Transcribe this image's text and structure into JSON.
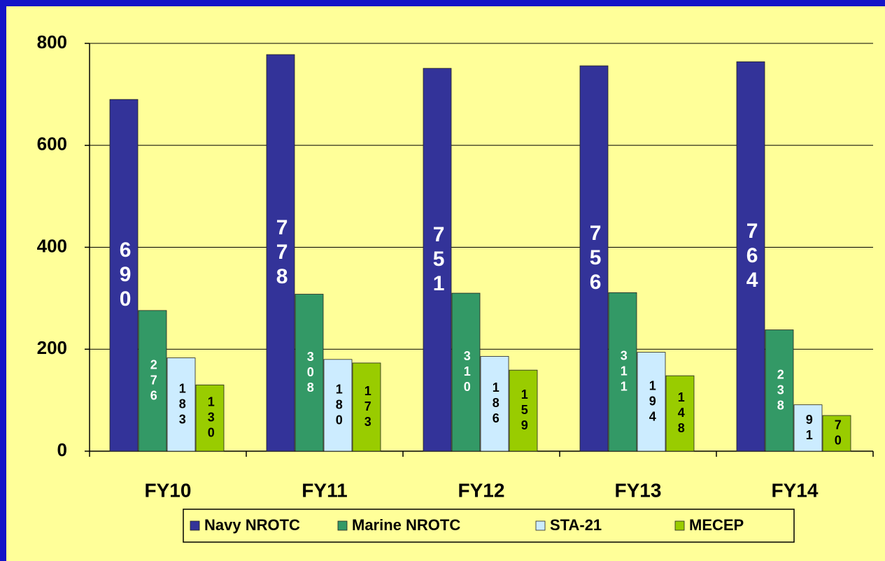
{
  "chart_data": {
    "type": "bar",
    "categories": [
      "FY10",
      "FY11",
      "FY12",
      "FY13",
      "FY14"
    ],
    "series": [
      {
        "name": "Navy NROTC",
        "color": "#333399",
        "values": [
          690,
          778,
          751,
          756,
          764
        ]
      },
      {
        "name": "Marine NROTC",
        "color": "#339966",
        "values": [
          276,
          308,
          310,
          311,
          238
        ]
      },
      {
        "name": "STA-21",
        "color": "#ccecff",
        "values": [
          183,
          180,
          186,
          194,
          91
        ]
      },
      {
        "name": "MECEP",
        "color": "#99cc00",
        "values": [
          130,
          173,
          159,
          148,
          70
        ]
      }
    ],
    "ylim": [
      0,
      800
    ],
    "yticks": [
      0,
      200,
      400,
      600,
      800
    ],
    "grid": true,
    "legend": "bottom"
  }
}
